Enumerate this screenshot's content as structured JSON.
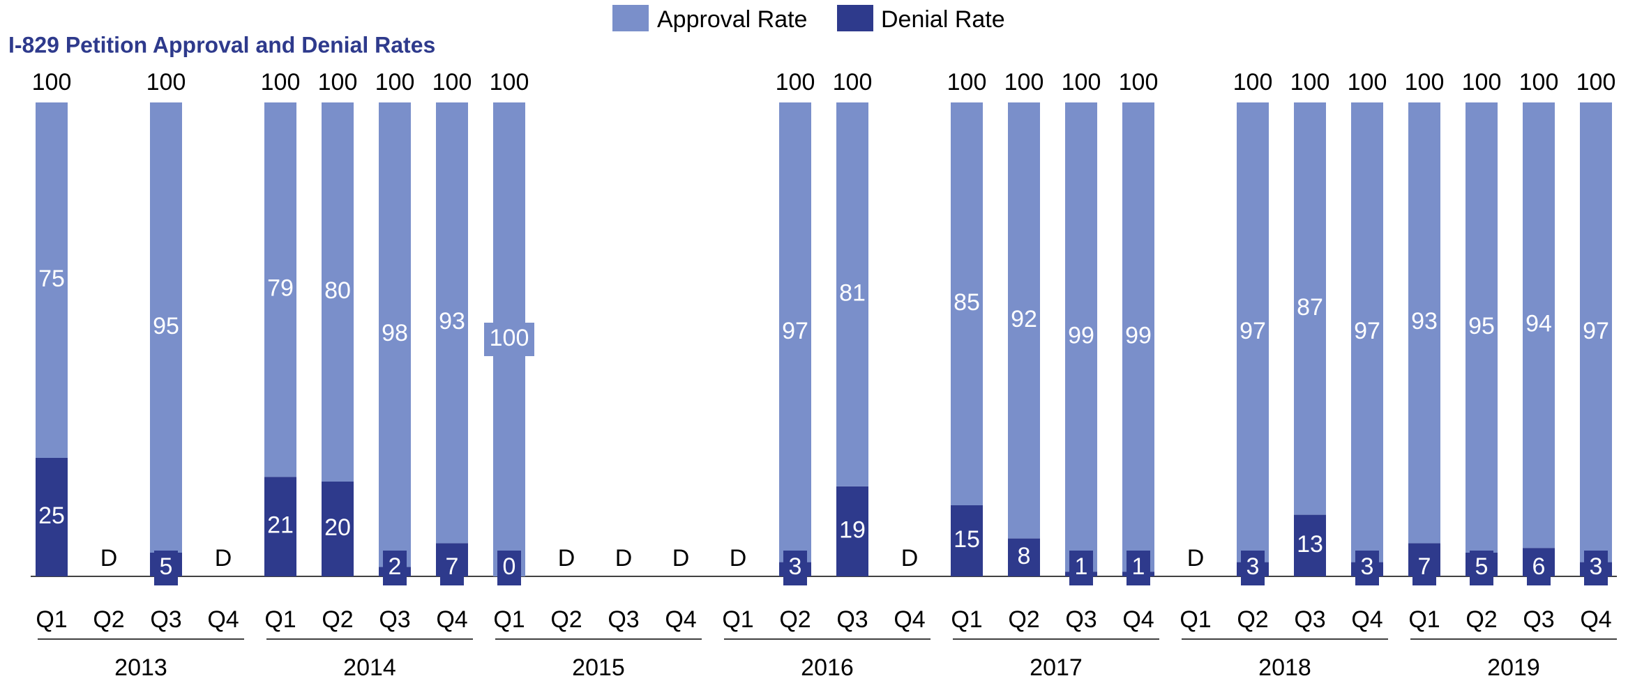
{
  "chart_data": {
    "type": "stacked_bar",
    "title": "I-829 Petition Approval and Denial Rates",
    "categories": [
      "Q1",
      "Q2",
      "Q3",
      "Q4",
      "Q1",
      "Q2",
      "Q3",
      "Q4",
      "Q1",
      "Q2",
      "Q3",
      "Q4",
      "Q1",
      "Q2",
      "Q3",
      "Q4",
      "Q1",
      "Q2",
      "Q3",
      "Q4",
      "Q1",
      "Q2",
      "Q3",
      "Q4",
      "Q1",
      "Q2",
      "Q3",
      "Q4"
    ],
    "years": [
      "2013",
      "2014",
      "2015",
      "2016",
      "2017",
      "2018",
      "2019"
    ],
    "series": [
      {
        "name": "Denial Rate",
        "color": "#2e3a8c",
        "values": [
          25,
          null,
          5,
          null,
          21,
          20,
          2,
          7,
          0,
          null,
          null,
          null,
          null,
          3,
          19,
          null,
          15,
          8,
          1,
          1,
          null,
          3,
          13,
          3,
          7,
          5,
          6,
          3
        ]
      },
      {
        "name": "Approval Rate",
        "color": "#7a8fca",
        "values": [
          75,
          null,
          95,
          null,
          79,
          80,
          98,
          93,
          100,
          null,
          null,
          null,
          null,
          97,
          81,
          null,
          85,
          92,
          99,
          99,
          null,
          97,
          87,
          97,
          93,
          95,
          94,
          97
        ]
      }
    ],
    "totals": [
      100,
      null,
      100,
      null,
      100,
      100,
      100,
      100,
      100,
      null,
      null,
      null,
      null,
      100,
      100,
      null,
      100,
      100,
      100,
      100,
      null,
      100,
      100,
      100,
      100,
      100,
      100,
      100
    ],
    "suppressed_label": "D",
    "ylim": [
      0,
      100
    ],
    "grid": false,
    "legend": "top"
  }
}
